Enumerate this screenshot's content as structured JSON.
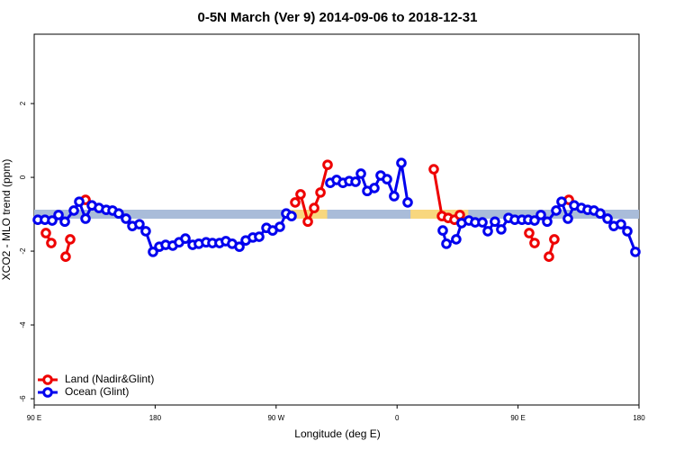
{
  "chart_data": {
    "type": "line",
    "title": "0-5N March (Ver 9)   2014-09-06 to 2018-12-31",
    "xlabel": "Longitude (deg E)",
    "ylabel": "XCO2 - MLO trend (ppm)",
    "xlim": [
      90,
      540
    ],
    "ylim": [
      -6.17,
      3.88
    ],
    "xticks": [
      {
        "value": 90,
        "label": "90 E"
      },
      180,
      {
        "value": 270,
        "label": "90 W"
      },
      {
        "value": 360,
        "label": "0"
      },
      {
        "value": 450,
        "label": "90 E"
      },
      {
        "value": 540,
        "label": "180"
      }
    ],
    "yticks": [
      -6,
      -4,
      -2,
      0,
      2
    ],
    "legend": "bottom-left",
    "band": {
      "value": -1,
      "color": "#a9bcd9",
      "land_color": "#f8d77e",
      "land_ranges": [
        [
          278,
          308
        ],
        [
          370,
          413
        ]
      ]
    },
    "series": [
      {
        "name": "Land (Nadir&Glint)",
        "color": "#ee0000",
        "x": [
          98.7,
          102.7,
          null,
          113.4,
          116.8,
          null,
          128.2,
          null,
          284.2,
          288.2,
          293.6,
          298.3,
          303,
          308.3,
          null,
          387.3,
          393.4,
          398,
          402.7,
          406.7,
          null,
          458.3,
          462.3,
          null,
          473,
          477,
          null,
          487.8
        ],
        "values": [
          -1.51,
          -1.78,
          null,
          -2.15,
          -1.68,
          null,
          -0.61,
          null,
          -0.68,
          -0.46,
          -1.2,
          -0.83,
          -0.41,
          0.34,
          null,
          0.22,
          -1.05,
          -1.1,
          -1.15,
          -1.02,
          null,
          -1.51,
          -1.78,
          null,
          -2.15,
          -1.68,
          null,
          -0.61
        ]
      },
      {
        "name": "Ocean (Glint)",
        "color": "#0000ee",
        "x": [
          92.7,
          98,
          103.4,
          108.1,
          112.8,
          119.5,
          123.5,
          128.2,
          132.9,
          138.2,
          143.6,
          148.3,
          152.9,
          158.3,
          163,
          168.3,
          173,
          178.4,
          183.1,
          187.8,
          193.1,
          197.8,
          202.5,
          207.9,
          212.5,
          217.9,
          222.6,
          227.9,
          232.6,
          237.3,
          242.7,
          247.4,
          252.7,
          257.4,
          262.8,
          267.4,
          272.8,
          277.5,
          281.5,
          null,
          310.3,
          315,
          319.7,
          324.4,
          329.1,
          333.1,
          337.8,
          343.1,
          347.8,
          352.5,
          357.8,
          363.2,
          367.9,
          null,
          394,
          396.7,
          404,
          408,
          413.4,
          418.1,
          423.5,
          427.5,
          432.8,
          437.5,
          442.9,
          447.6,
          452.9,
          457.6,
          462.3,
          467,
          471.7,
          478.4,
          482.4,
          487.1,
          491.8,
          497.1,
          501.8,
          506.5,
          511.2,
          516.6,
          521.2,
          526.6,
          531.3,
          537.3
        ],
        "values": [
          -1.15,
          -1.15,
          -1.17,
          -1.02,
          -1.2,
          -0.9,
          -0.66,
          -1.12,
          -0.76,
          -0.83,
          -0.88,
          -0.9,
          -0.98,
          -1.12,
          -1.32,
          -1.27,
          -1.46,
          -2.02,
          -1.88,
          -1.83,
          -1.85,
          -1.76,
          -1.66,
          -1.83,
          -1.8,
          -1.76,
          -1.78,
          -1.78,
          -1.73,
          -1.8,
          -1.88,
          -1.71,
          -1.63,
          -1.61,
          -1.37,
          -1.44,
          -1.34,
          -0.98,
          -1.05,
          null,
          -0.15,
          -0.07,
          -0.15,
          -0.1,
          -0.12,
          0.1,
          -0.37,
          -0.29,
          0.05,
          -0.05,
          -0.51,
          0.39,
          -0.68,
          null,
          -1.44,
          -1.8,
          -1.68,
          -1.24,
          -1.17,
          -1.22,
          -1.22,
          -1.46,
          -1.2,
          -1.41,
          -1.1,
          -1.15,
          -1.15,
          -1.15,
          -1.17,
          -1.02,
          -1.2,
          -0.9,
          -0.66,
          -1.12,
          -0.76,
          -0.83,
          -0.88,
          -0.9,
          -0.98,
          -1.12,
          -1.32,
          -1.27,
          -1.46,
          -2.02
        ]
      }
    ]
  }
}
